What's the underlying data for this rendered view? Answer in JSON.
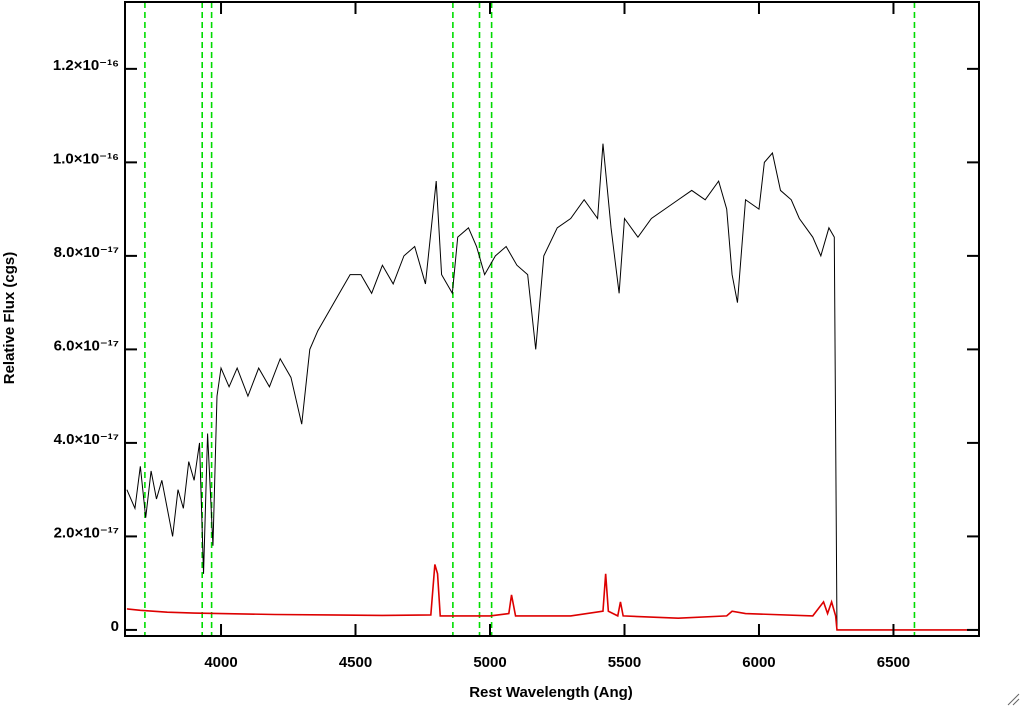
{
  "chart_data": {
    "type": "line",
    "xlabel": "Rest Wavelength (Ang)",
    "ylabel": "Relative Flux (cgs)",
    "xlim": [
      3643,
      6818
    ],
    "xticks": [
      4000,
      4500,
      5000,
      5500,
      6000,
      6500
    ],
    "ylim": [
      -1.3e-18,
      1.343e-16
    ],
    "yticks": [
      0,
      {
        "value": 2e-17,
        "label": "2.0×10⁻¹⁷"
      },
      {
        "value": 4e-17,
        "label": "4.0×10⁻¹⁷"
      },
      {
        "value": 6e-17,
        "label": "6.0×10⁻¹⁷"
      },
      {
        "value": 8e-17,
        "label": "8.0×10⁻¹⁷"
      },
      {
        "value": 1e-16,
        "label": "1.0×10⁻¹⁶"
      },
      {
        "value": 1.2e-16,
        "label": "1.2×10⁻¹⁶"
      }
    ],
    "reference_lines": {
      "x": [
        3717,
        3930,
        3965,
        4862,
        4961,
        5006,
        6578
      ],
      "color": "#00dd00",
      "style": "dashed"
    },
    "series": [
      {
        "color": "#000000",
        "x": [
          3650,
          3680,
          3700,
          3720,
          3740,
          3760,
          3780,
          3800,
          3820,
          3840,
          3860,
          3880,
          3900,
          3920,
          3935,
          3950,
          3970,
          3985,
          4000,
          4030,
          4060,
          4100,
          4140,
          4180,
          4220,
          4260,
          4300,
          4330,
          4360,
          4400,
          4440,
          4480,
          4520,
          4560,
          4600,
          4640,
          4680,
          4720,
          4760,
          4800,
          4820,
          4860,
          4880,
          4920,
          4950,
          4980,
          5020,
          5060,
          5100,
          5140,
          5170,
          5200,
          5250,
          5300,
          5350,
          5400,
          5420,
          5450,
          5480,
          5500,
          5550,
          5600,
          5650,
          5700,
          5750,
          5800,
          5850,
          5880,
          5900,
          5920,
          5950,
          6000,
          6020,
          6050,
          6080,
          6120,
          6150,
          6200,
          6230,
          6260,
          6280,
          6290
        ],
        "values": [
          3e-17,
          2.6e-17,
          3.5e-17,
          2.4e-17,
          3.4e-17,
          2.8e-17,
          3.2e-17,
          2.6e-17,
          2e-17,
          3e-17,
          2.6e-17,
          3.6e-17,
          3.2e-17,
          4e-17,
          1.2e-17,
          4.2e-17,
          1.8e-17,
          5e-17,
          5.6e-17,
          5.2e-17,
          5.6e-17,
          5e-17,
          5.6e-17,
          5.2e-17,
          5.8e-17,
          5.4e-17,
          4.4e-17,
          6e-17,
          6.4e-17,
          6.8e-17,
          7.2e-17,
          7.6e-17,
          7.6e-17,
          7.2e-17,
          7.8e-17,
          7.4e-17,
          8e-17,
          8.2e-17,
          7.4e-17,
          9.6e-17,
          7.6e-17,
          7.2e-17,
          8.4e-17,
          8.6e-17,
          8.2e-17,
          7.6e-17,
          8e-17,
          8.2e-17,
          7.8e-17,
          7.6e-17,
          6e-17,
          8e-17,
          8.6e-17,
          8.8e-17,
          9.2e-17,
          8.8e-17,
          1.04e-16,
          8.6e-17,
          7.2e-17,
          8.8e-17,
          8.4e-17,
          8.8e-17,
          9e-17,
          9.2e-17,
          9.4e-17,
          9.2e-17,
          9.6e-17,
          9e-17,
          7.6e-17,
          7e-17,
          9.2e-17,
          9e-17,
          1e-16,
          1.02e-16,
          9.4e-17,
          9.2e-17,
          8.8e-17,
          8.4e-17,
          8e-17,
          8.6e-17,
          8.4e-17,
          0
        ]
      },
      {
        "color": "#dd0000",
        "x": [
          3650,
          3700,
          3800,
          3900,
          4000,
          4200,
          4400,
          4600,
          4780,
          4795,
          4805,
          4815,
          5000,
          5070,
          5080,
          5095,
          5300,
          5420,
          5430,
          5440,
          5475,
          5485,
          5495,
          5700,
          5880,
          5900,
          5950,
          6200,
          6240,
          6255,
          6270,
          6285,
          6290,
          6818
        ],
        "values": [
          4.5e-18,
          4.2e-18,
          3.8e-18,
          3.6e-18,
          3.5e-18,
          3.3e-18,
          3.2e-18,
          3.1e-18,
          3.2e-18,
          1.4e-17,
          1.2e-17,
          3e-18,
          3e-18,
          3.5e-18,
          7.5e-18,
          3e-18,
          3e-18,
          4e-18,
          1.2e-17,
          4e-18,
          3e-18,
          6e-18,
          3e-18,
          2.5e-18,
          3e-18,
          4e-18,
          3.5e-18,
          3e-18,
          6e-18,
          3.5e-18,
          6e-18,
          3e-18,
          0,
          0
        ]
      }
    ]
  }
}
